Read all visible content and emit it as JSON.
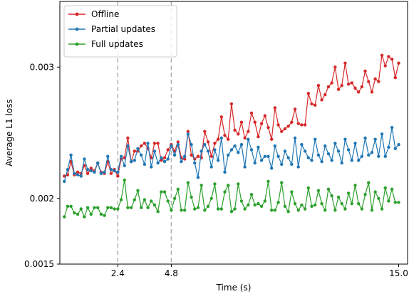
{
  "chart_data": {
    "type": "line",
    "title": "",
    "xlabel": "Time (s)",
    "ylabel": "Average L1 loss",
    "xlim": [
      -0.2,
      15.4
    ],
    "ylim": [
      0.0015,
      0.0035
    ],
    "xticks": [
      2.4,
      4.8,
      15.0
    ],
    "xtick_labels": [
      "2.4",
      "4.8",
      "15.0"
    ],
    "yticks": [
      0.0015,
      0.002,
      0.003
    ],
    "ytick_labels": [
      "0.0015",
      "0.002",
      "0.003"
    ],
    "vlines": [
      2.4,
      4.8
    ],
    "vline_color": "#b0b0b0",
    "legend_position": "upper-left",
    "grid": false,
    "series": [
      {
        "name": "Offline",
        "color": "#d62728",
        "x": [
          0.0,
          0.15,
          0.3,
          0.45,
          0.6,
          0.75,
          0.9,
          1.05,
          1.2,
          1.35,
          1.5,
          1.65,
          1.8,
          1.95,
          2.1,
          2.25,
          2.4,
          2.55,
          2.7,
          2.85,
          3.0,
          3.15,
          3.3,
          3.45,
          3.6,
          3.75,
          3.9,
          4.05,
          4.2,
          4.35,
          4.5,
          4.65,
          4.8,
          4.95,
          5.1,
          5.25,
          5.4,
          5.55,
          5.7,
          5.85,
          6.0,
          6.15,
          6.3,
          6.45,
          6.6,
          6.75,
          6.9,
          7.05,
          7.2,
          7.35,
          7.5,
          7.65,
          7.8,
          7.95,
          8.1,
          8.25,
          8.4,
          8.55,
          8.7,
          8.85,
          9.0,
          9.15,
          9.3,
          9.45,
          9.6,
          9.75,
          9.9,
          10.05,
          10.2,
          10.35,
          10.5,
          10.65,
          10.8,
          10.95,
          11.1,
          11.25,
          11.4,
          11.55,
          11.7,
          11.85,
          12.0,
          12.15,
          12.3,
          12.45,
          12.6,
          12.75,
          12.9,
          13.05,
          13.2,
          13.35,
          13.5,
          13.65,
          13.8,
          13.95,
          14.1,
          14.25,
          14.4,
          14.55,
          14.7,
          14.85,
          15.0
        ],
        "y": [
          0.00217,
          0.00218,
          0.00228,
          0.00218,
          0.0022,
          0.00219,
          0.00225,
          0.00219,
          0.00223,
          0.00221,
          0.00227,
          0.0022,
          0.00219,
          0.00228,
          0.00219,
          0.00222,
          0.00217,
          0.0023,
          0.00231,
          0.00246,
          0.00228,
          0.00236,
          0.00236,
          0.0024,
          0.00242,
          0.00238,
          0.00231,
          0.00242,
          0.00242,
          0.00229,
          0.00231,
          0.00237,
          0.00241,
          0.00236,
          0.00243,
          0.00231,
          0.0023,
          0.00251,
          0.00233,
          0.0023,
          0.00232,
          0.00231,
          0.00251,
          0.00243,
          0.00232,
          0.00242,
          0.00245,
          0.00262,
          0.00248,
          0.00245,
          0.00272,
          0.00252,
          0.00249,
          0.00258,
          0.00246,
          0.00251,
          0.00265,
          0.00258,
          0.00247,
          0.00257,
          0.00263,
          0.00254,
          0.00245,
          0.00269,
          0.00256,
          0.00251,
          0.00253,
          0.00255,
          0.00258,
          0.00268,
          0.00257,
          0.00256,
          0.00256,
          0.0028,
          0.00272,
          0.00271,
          0.00286,
          0.00275,
          0.00279,
          0.00285,
          0.00288,
          0.003,
          0.00283,
          0.00286,
          0.00303,
          0.00287,
          0.00288,
          0.00284,
          0.00281,
          0.00285,
          0.00297,
          0.00289,
          0.00281,
          0.00291,
          0.00289,
          0.00309,
          0.00301,
          0.00308,
          0.00306,
          0.00292,
          0.00303
        ]
      },
      {
        "name": "Partial updates",
        "color": "#1f77b4",
        "x": [
          0.0,
          0.15,
          0.3,
          0.45,
          0.6,
          0.75,
          0.9,
          1.05,
          1.2,
          1.35,
          1.5,
          1.65,
          1.8,
          1.95,
          2.1,
          2.25,
          2.4,
          2.55,
          2.7,
          2.85,
          3.0,
          3.15,
          3.3,
          3.45,
          3.6,
          3.75,
          3.9,
          4.05,
          4.2,
          4.35,
          4.5,
          4.65,
          4.8,
          4.95,
          5.1,
          5.25,
          5.4,
          5.55,
          5.7,
          5.85,
          6.0,
          6.15,
          6.3,
          6.45,
          6.6,
          6.75,
          6.9,
          7.05,
          7.2,
          7.35,
          7.5,
          7.65,
          7.8,
          7.95,
          8.1,
          8.25,
          8.4,
          8.55,
          8.7,
          8.85,
          9.0,
          9.15,
          9.3,
          9.45,
          9.6,
          9.75,
          9.9,
          10.05,
          10.2,
          10.35,
          10.5,
          10.65,
          10.8,
          10.95,
          11.1,
          11.25,
          11.4,
          11.55,
          11.7,
          11.85,
          12.0,
          12.15,
          12.3,
          12.45,
          12.6,
          12.75,
          12.9,
          13.05,
          13.2,
          13.35,
          13.5,
          13.65,
          13.8,
          13.95,
          14.1,
          14.25,
          14.4,
          14.55,
          14.7,
          14.85,
          15.0
        ],
        "y": [
          0.00213,
          0.00222,
          0.00233,
          0.00219,
          0.00218,
          0.00217,
          0.0023,
          0.00222,
          0.00221,
          0.0022,
          0.00227,
          0.00219,
          0.0022,
          0.00232,
          0.00222,
          0.00221,
          0.0022,
          0.00232,
          0.00225,
          0.0024,
          0.00228,
          0.00229,
          0.00238,
          0.00233,
          0.00226,
          0.00242,
          0.00224,
          0.00236,
          0.00227,
          0.00231,
          0.00228,
          0.0023,
          0.0024,
          0.00233,
          0.00241,
          0.00228,
          0.00232,
          0.00249,
          0.00241,
          0.00227,
          0.00216,
          0.00236,
          0.00241,
          0.00236,
          0.00224,
          0.00237,
          0.00229,
          0.00246,
          0.0022,
          0.00233,
          0.00237,
          0.0024,
          0.00235,
          0.00241,
          0.00224,
          0.00245,
          0.00237,
          0.00227,
          0.00239,
          0.00229,
          0.00232,
          0.00232,
          0.00223,
          0.0024,
          0.00232,
          0.00226,
          0.00236,
          0.00231,
          0.00226,
          0.00246,
          0.00224,
          0.00241,
          0.00236,
          0.00231,
          0.00229,
          0.00245,
          0.00233,
          0.00228,
          0.0024,
          0.00234,
          0.00229,
          0.00242,
          0.00236,
          0.00227,
          0.00245,
          0.00237,
          0.00229,
          0.00242,
          0.00229,
          0.00232,
          0.00246,
          0.00233,
          0.00235,
          0.00245,
          0.00232,
          0.00249,
          0.00232,
          0.00239,
          0.00254,
          0.00238,
          0.00241
        ]
      },
      {
        "name": "Full updates",
        "color": "#2ca02c",
        "x": [
          0.0,
          0.15,
          0.3,
          0.45,
          0.6,
          0.75,
          0.9,
          1.05,
          1.2,
          1.35,
          1.5,
          1.65,
          1.8,
          1.95,
          2.1,
          2.25,
          2.4,
          2.55,
          2.7,
          2.85,
          3.0,
          3.15,
          3.3,
          3.45,
          3.6,
          3.75,
          3.9,
          4.05,
          4.2,
          4.35,
          4.5,
          4.65,
          4.8,
          4.95,
          5.1,
          5.25,
          5.4,
          5.55,
          5.7,
          5.85,
          6.0,
          6.15,
          6.3,
          6.45,
          6.6,
          6.75,
          6.9,
          7.05,
          7.2,
          7.35,
          7.5,
          7.65,
          7.8,
          7.95,
          8.1,
          8.25,
          8.4,
          8.55,
          8.7,
          8.85,
          9.0,
          9.15,
          9.3,
          9.45,
          9.6,
          9.75,
          9.9,
          10.05,
          10.2,
          10.35,
          10.5,
          10.65,
          10.8,
          10.95,
          11.1,
          11.25,
          11.4,
          11.55,
          11.7,
          11.85,
          12.0,
          12.15,
          12.3,
          12.45,
          12.6,
          12.75,
          12.9,
          13.05,
          13.2,
          13.35,
          13.5,
          13.65,
          13.8,
          13.95,
          14.1,
          14.25,
          14.4,
          14.55,
          14.7,
          14.85,
          15.0
        ],
        "y": [
          0.00186,
          0.00194,
          0.00194,
          0.00189,
          0.00188,
          0.00192,
          0.00186,
          0.00193,
          0.00188,
          0.00193,
          0.00193,
          0.00188,
          0.00187,
          0.00193,
          0.00193,
          0.00192,
          0.00192,
          0.00199,
          0.00214,
          0.00193,
          0.00193,
          0.00199,
          0.00206,
          0.00193,
          0.00199,
          0.00193,
          0.00198,
          0.00195,
          0.0019,
          0.00205,
          0.00205,
          0.00198,
          0.00191,
          0.002,
          0.00207,
          0.00191,
          0.00191,
          0.00212,
          0.00201,
          0.00192,
          0.00193,
          0.0021,
          0.00191,
          0.00194,
          0.002,
          0.00211,
          0.00192,
          0.00192,
          0.00205,
          0.0021,
          0.0019,
          0.00192,
          0.00211,
          0.00198,
          0.00192,
          0.00195,
          0.00203,
          0.00195,
          0.00196,
          0.00194,
          0.00198,
          0.00213,
          0.00191,
          0.00191,
          0.00197,
          0.00212,
          0.00194,
          0.0019,
          0.00205,
          0.00196,
          0.00191,
          0.00195,
          0.00192,
          0.00208,
          0.00194,
          0.00195,
          0.00206,
          0.00196,
          0.00191,
          0.00207,
          0.00202,
          0.00191,
          0.00201,
          0.00196,
          0.00192,
          0.00204,
          0.00196,
          0.0021,
          0.00196,
          0.00192,
          0.00203,
          0.00212,
          0.00191,
          0.00205,
          0.002,
          0.00192,
          0.00208,
          0.00198,
          0.00207,
          0.00197,
          0.00197
        ]
      }
    ]
  }
}
